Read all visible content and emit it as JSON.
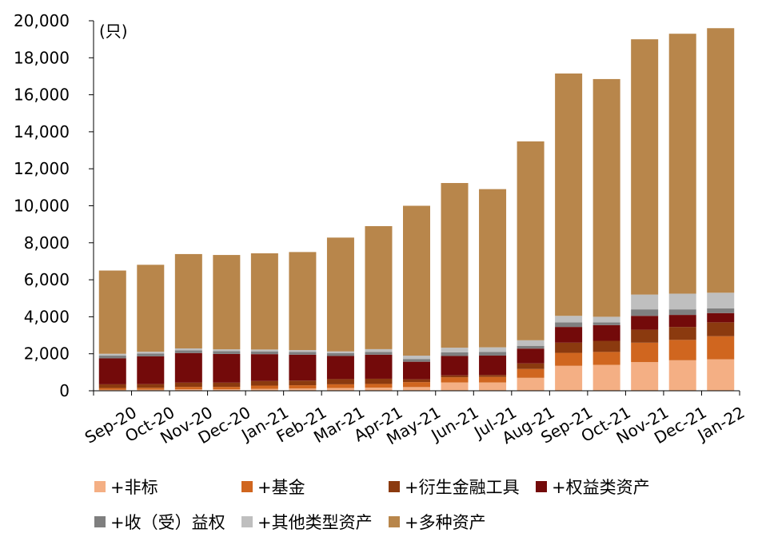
{
  "chart_data": {
    "type": "bar",
    "stacked": true,
    "unit_label": "(只)",
    "categories": [
      "Sep-20",
      "Oct-20",
      "Nov-20",
      "Dec-20",
      "Jan-21",
      "Feb-21",
      "Mar-21",
      "Apr-21",
      "May-21",
      "Jun-21",
      "Jul-21",
      "Aug-21",
      "Sep-21",
      "Oct-21",
      "Nov-21",
      "Dec-21",
      "Jan-22"
    ],
    "ylim": [
      0,
      20000
    ],
    "yticks": [
      0,
      2000,
      4000,
      6000,
      8000,
      10000,
      12000,
      14000,
      16000,
      18000,
      20000
    ],
    "ytick_labels": [
      "0",
      "2,000",
      "4,000",
      "6,000",
      "8,000",
      "10,000",
      "12,000",
      "14,000",
      "16,000",
      "18,000",
      "20,000"
    ],
    "grid": false,
    "legend_position": "bottom",
    "series": [
      {
        "name": "+非标",
        "color": "#F4AF84",
        "values": [
          50,
          60,
          80,
          80,
          100,
          120,
          150,
          170,
          200,
          450,
          450,
          700,
          1350,
          1400,
          1550,
          1650,
          1700
        ]
      },
      {
        "name": "+基金",
        "color": "#D0661F",
        "values": [
          100,
          100,
          130,
          130,
          180,
          180,
          200,
          200,
          270,
          280,
          300,
          480,
          700,
          700,
          1050,
          1100,
          1250
        ]
      },
      {
        "name": "+衍生金融工具",
        "color": "#8B3A0F",
        "values": [
          200,
          200,
          230,
          230,
          250,
          250,
          280,
          280,
          150,
          100,
          100,
          300,
          550,
          600,
          700,
          700,
          750
        ]
      },
      {
        "name": "+权益类资产",
        "color": "#730A0A",
        "values": [
          1400,
          1500,
          1600,
          1550,
          1450,
          1400,
          1250,
          1300,
          950,
          1050,
          1050,
          800,
          850,
          850,
          750,
          650,
          500
        ]
      },
      {
        "name": "+收（受）益权",
        "color": "#7F7F7F",
        "values": [
          150,
          150,
          150,
          150,
          150,
          150,
          150,
          150,
          150,
          200,
          200,
          150,
          250,
          150,
          350,
          300,
          250
        ]
      },
      {
        "name": "+其他类型资产",
        "color": "#BFBFBF",
        "values": [
          100,
          100,
          100,
          100,
          100,
          100,
          100,
          150,
          180,
          250,
          250,
          300,
          350,
          300,
          800,
          850,
          850
        ]
      },
      {
        "name": "+多种资产",
        "color": "#B8864B",
        "values": [
          4500,
          4700,
          5100,
          5100,
          5200,
          5300,
          6150,
          6650,
          8100,
          8900,
          8550,
          10750,
          13100,
          12850,
          13800,
          14050,
          14300
        ]
      }
    ]
  }
}
